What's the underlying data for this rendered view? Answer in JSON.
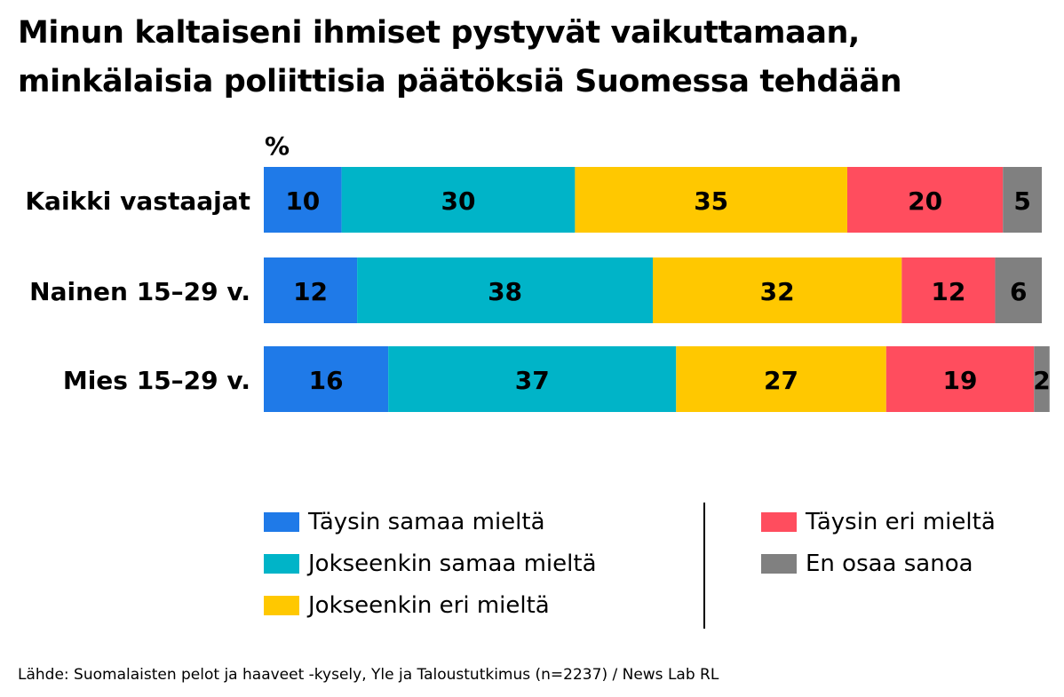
{
  "chart_data": {
    "type": "bar",
    "orientation": "horizontal",
    "stacked": true,
    "title_lines": [
      "Minun kaltaiseni ihmiset pystyvät vaikuttamaan,",
      "minkälaisia poliittisia päätöksiä Suomessa tehdään"
    ],
    "unit": "%",
    "categories": [
      "Kaikki vastaajat",
      "Nainen 15–29 v.",
      "Mies 15–29 v."
    ],
    "series": [
      {
        "name": "Täysin samaa mieltä",
        "color": "#1f7ae8",
        "values": [
          10,
          12,
          16
        ]
      },
      {
        "name": "Jokseenkin samaa mieltä",
        "color": "#00b4c8",
        "values": [
          30,
          38,
          37
        ]
      },
      {
        "name": "Jokseenkin eri mieltä",
        "color": "#ffc800",
        "values": [
          35,
          32,
          27
        ]
      },
      {
        "name": "Täysin eri mieltä",
        "color": "#ff4d5e",
        "values": [
          20,
          12,
          19
        ]
      },
      {
        "name": "En osaa sanoa",
        "color": "#808080",
        "values": [
          5,
          6,
          2
        ]
      }
    ],
    "xlim": [
      0,
      100
    ],
    "grid": false,
    "legend_position": "bottom",
    "source": "Lähde: Suomalaisten pelot ja haaveet -kysely, Yle ja Taloustutkimus (n=2237) / News Lab RL"
  }
}
